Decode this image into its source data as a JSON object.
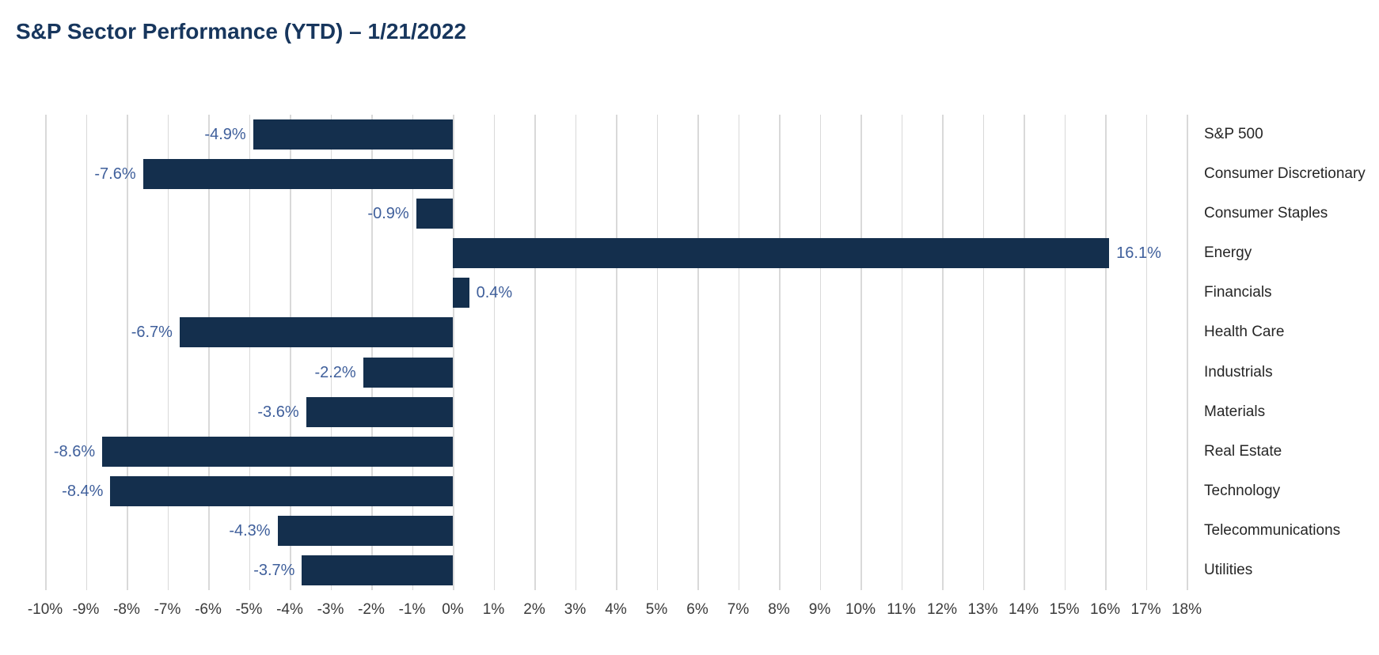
{
  "title": "S&P Sector Performance (YTD) – 1/21/2022",
  "chart_data": {
    "type": "bar",
    "orientation": "horizontal",
    "title": "S&P Sector Performance (YTD) – 1/21/2022",
    "categories": [
      "S&P 500",
      "Consumer Discretionary",
      "Consumer Staples",
      "Energy",
      "Financials",
      "Health Care",
      "Industrials",
      "Materials",
      "Real Estate",
      "Technology",
      "Telecommunications",
      "Utilities"
    ],
    "values": [
      -4.9,
      -7.6,
      -0.9,
      16.1,
      0.4,
      -6.7,
      -2.2,
      -3.6,
      -8.6,
      -8.4,
      -4.3,
      -3.7
    ],
    "value_labels": [
      "-4.9%",
      "-7.6%",
      "-0.9%",
      "16.1%",
      "0.4%",
      "-6.7%",
      "-2.2%",
      "-3.6%",
      "-8.6%",
      "-8.4%",
      "-4.3%",
      "-3.7%"
    ],
    "xlabel": "",
    "ylabel": "",
    "xlim": [
      -10,
      18
    ],
    "x_tick_step": 1,
    "x_tick_labels": [
      "-10%",
      "-9%",
      "-8%",
      "-7%",
      "-6%",
      "-5%",
      "-4%",
      "-3%",
      "-2%",
      "-1%",
      "0%",
      "1%",
      "2%",
      "3%",
      "4%",
      "5%",
      "6%",
      "7%",
      "8%",
      "9%",
      "10%",
      "11%",
      "12%",
      "13%",
      "14%",
      "15%",
      "16%",
      "17%",
      "18%"
    ],
    "grid": true,
    "legend": false,
    "value_labels_position": "outside-end",
    "category_labels_position": "right",
    "colors": {
      "bar": "#142f4d",
      "value_label": "#3f5f9b",
      "category_label": "#262626",
      "tick_label": "#3a3a3a",
      "gridline": "#d9d9d9",
      "title": "#17365d",
      "background": "#ffffff"
    }
  }
}
